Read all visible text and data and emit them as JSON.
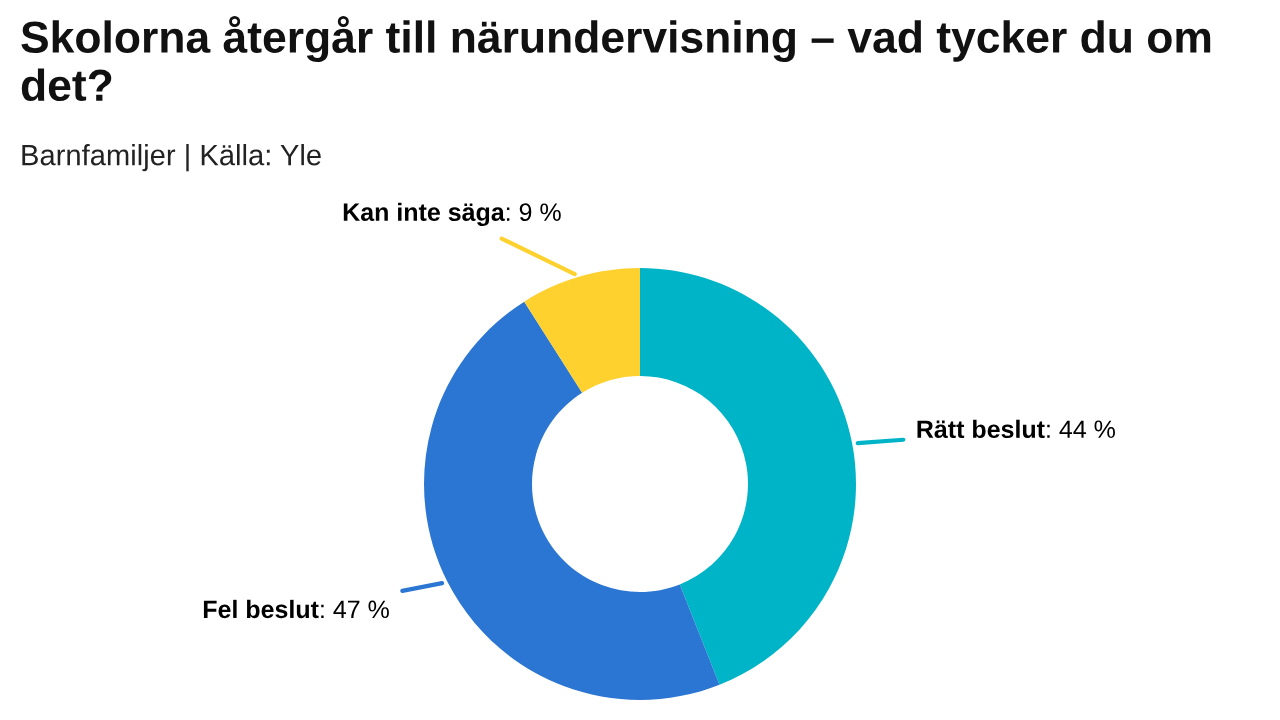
{
  "chart_data": {
    "type": "donut",
    "title": "Skolorna återgår till närundervisning – vad tycker du om det?",
    "subtitle": "Barnfamiljer | Källa: Yle",
    "categories": [
      "Rätt beslut",
      "Fel beslut",
      "Kan inte säga"
    ],
    "values": [
      44,
      47,
      9
    ],
    "colors": [
      "#00b4c8",
      "#2a76d2",
      "#ffd12f"
    ],
    "value_labels": [
      ": 44 %",
      ": 47 %",
      ": 9 %"
    ],
    "legend": false
  }
}
